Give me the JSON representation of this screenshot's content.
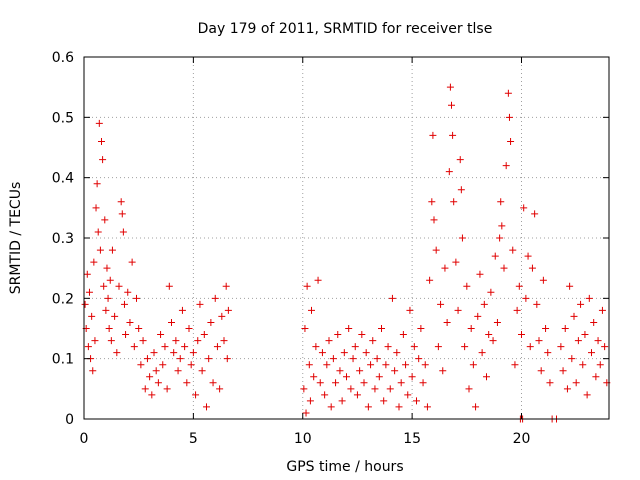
{
  "chart_data": {
    "type": "scatter",
    "title": "Day 179 of 2011, SRMTID for receiver tlse",
    "xlabel": "GPS time / hours",
    "ylabel": "SRMTID / TECUs",
    "xlim": [
      0,
      24
    ],
    "ylim": [
      0,
      0.6
    ],
    "x_ticks": [
      0,
      5,
      10,
      15,
      20
    ],
    "x_tick_labels": [
      "0",
      "5",
      "10",
      "15",
      "20"
    ],
    "y_ticks": [
      0,
      0.1,
      0.2,
      0.3,
      0.4,
      0.5,
      0.6
    ],
    "y_tick_labels": [
      "0",
      "0.1",
      "0.2",
      "0.3",
      "0.4",
      "0.5",
      "0.6"
    ],
    "grid": true,
    "marker": "plus",
    "color": "#e00000",
    "series": [
      {
        "name": "SRMTID",
        "points": [
          [
            0.05,
            0.19
          ],
          [
            0.1,
            0.15
          ],
          [
            0.15,
            0.24
          ],
          [
            0.2,
            0.12
          ],
          [
            0.25,
            0.21
          ],
          [
            0.3,
            0.1
          ],
          [
            0.35,
            0.17
          ],
          [
            0.4,
            0.08
          ],
          [
            0.45,
            0.26
          ],
          [
            0.5,
            0.13
          ],
          [
            0.55,
            0.35
          ],
          [
            0.6,
            0.39
          ],
          [
            0.65,
            0.31
          ],
          [
            0.7,
            0.49
          ],
          [
            0.75,
            0.28
          ],
          [
            0.8,
            0.46
          ],
          [
            0.85,
            0.43
          ],
          [
            0.9,
            0.22
          ],
          [
            0.95,
            0.33
          ],
          [
            1.0,
            0.18
          ],
          [
            1.05,
            0.25
          ],
          [
            1.1,
            0.2
          ],
          [
            1.15,
            0.15
          ],
          [
            1.2,
            0.23
          ],
          [
            1.25,
            0.13
          ],
          [
            1.3,
            0.28
          ],
          [
            1.4,
            0.17
          ],
          [
            1.5,
            0.11
          ],
          [
            1.6,
            0.22
          ],
          [
            1.7,
            0.36
          ],
          [
            1.75,
            0.34
          ],
          [
            1.8,
            0.31
          ],
          [
            1.85,
            0.19
          ],
          [
            1.9,
            0.14
          ],
          [
            2.0,
            0.21
          ],
          [
            2.1,
            0.16
          ],
          [
            2.2,
            0.26
          ],
          [
            2.3,
            0.12
          ],
          [
            2.4,
            0.2
          ],
          [
            2.5,
            0.15
          ],
          [
            2.6,
            0.09
          ],
          [
            2.7,
            0.13
          ],
          [
            2.8,
            0.05
          ],
          [
            2.9,
            0.1
          ],
          [
            3.0,
            0.07
          ],
          [
            3.1,
            0.04
          ],
          [
            3.2,
            0.11
          ],
          [
            3.3,
            0.08
          ],
          [
            3.4,
            0.06
          ],
          [
            3.5,
            0.14
          ],
          [
            3.6,
            0.09
          ],
          [
            3.7,
            0.12
          ],
          [
            3.8,
            0.05
          ],
          [
            3.9,
            0.22
          ],
          [
            4.0,
            0.16
          ],
          [
            4.1,
            0.11
          ],
          [
            4.2,
            0.13
          ],
          [
            4.3,
            0.08
          ],
          [
            4.4,
            0.1
          ],
          [
            4.5,
            0.18
          ],
          [
            4.6,
            0.12
          ],
          [
            4.7,
            0.06
          ],
          [
            4.8,
            0.15
          ],
          [
            4.9,
            0.09
          ],
          [
            5.0,
            0.11
          ],
          [
            5.1,
            0.04
          ],
          [
            5.2,
            0.13
          ],
          [
            5.3,
            0.19
          ],
          [
            5.4,
            0.08
          ],
          [
            5.5,
            0.14
          ],
          [
            5.6,
            0.02
          ],
          [
            5.7,
            0.1
          ],
          [
            5.8,
            0.16
          ],
          [
            5.9,
            0.06
          ],
          [
            6.0,
            0.2
          ],
          [
            6.1,
            0.12
          ],
          [
            6.2,
            0.05
          ],
          [
            6.3,
            0.17
          ],
          [
            6.4,
            0.13
          ],
          [
            6.5,
            0.22
          ],
          [
            6.55,
            0.1
          ],
          [
            6.6,
            0.18
          ],
          [
            10.05,
            0.05
          ],
          [
            10.1,
            0.15
          ],
          [
            10.15,
            0.01
          ],
          [
            10.2,
            0.22
          ],
          [
            10.3,
            0.09
          ],
          [
            10.35,
            0.03
          ],
          [
            10.4,
            0.18
          ],
          [
            10.5,
            0.07
          ],
          [
            10.6,
            0.12
          ],
          [
            10.7,
            0.23
          ],
          [
            10.8,
            0.06
          ],
          [
            10.9,
            0.11
          ],
          [
            11.0,
            0.04
          ],
          [
            11.1,
            0.09
          ],
          [
            11.2,
            0.13
          ],
          [
            11.3,
            0.02
          ],
          [
            11.4,
            0.1
          ],
          [
            11.5,
            0.06
          ],
          [
            11.6,
            0.14
          ],
          [
            11.7,
            0.08
          ],
          [
            11.8,
            0.03
          ],
          [
            11.9,
            0.11
          ],
          [
            12.0,
            0.07
          ],
          [
            12.1,
            0.15
          ],
          [
            12.2,
            0.05
          ],
          [
            12.3,
            0.1
          ],
          [
            12.4,
            0.12
          ],
          [
            12.5,
            0.04
          ],
          [
            12.6,
            0.08
          ],
          [
            12.7,
            0.14
          ],
          [
            12.8,
            0.06
          ],
          [
            12.9,
            0.11
          ],
          [
            13.0,
            0.02
          ],
          [
            13.1,
            0.09
          ],
          [
            13.2,
            0.13
          ],
          [
            13.3,
            0.05
          ],
          [
            13.4,
            0.1
          ],
          [
            13.5,
            0.07
          ],
          [
            13.6,
            0.15
          ],
          [
            13.7,
            0.03
          ],
          [
            13.8,
            0.09
          ],
          [
            13.9,
            0.12
          ],
          [
            14.0,
            0.05
          ],
          [
            14.1,
            0.2
          ],
          [
            14.2,
            0.08
          ],
          [
            14.3,
            0.11
          ],
          [
            14.4,
            0.02
          ],
          [
            14.5,
            0.06
          ],
          [
            14.6,
            0.14
          ],
          [
            14.7,
            0.09
          ],
          [
            14.8,
            0.04
          ],
          [
            14.9,
            0.18
          ],
          [
            15.0,
            0.07
          ],
          [
            15.1,
            0.12
          ],
          [
            15.2,
            0.03
          ],
          [
            15.3,
            0.1
          ],
          [
            15.4,
            0.15
          ],
          [
            15.5,
            0.06
          ],
          [
            15.6,
            0.09
          ],
          [
            15.7,
            0.02
          ],
          [
            15.8,
            0.23
          ],
          [
            15.9,
            0.36
          ],
          [
            15.95,
            0.47
          ],
          [
            16.0,
            0.33
          ],
          [
            16.1,
            0.28
          ],
          [
            16.2,
            0.12
          ],
          [
            16.3,
            0.19
          ],
          [
            16.4,
            0.08
          ],
          [
            16.5,
            0.25
          ],
          [
            16.6,
            0.16
          ],
          [
            16.7,
            0.41
          ],
          [
            16.75,
            0.55
          ],
          [
            16.8,
            0.52
          ],
          [
            16.85,
            0.47
          ],
          [
            16.9,
            0.36
          ],
          [
            17.0,
            0.26
          ],
          [
            17.1,
            0.18
          ],
          [
            17.2,
            0.43
          ],
          [
            17.25,
            0.38
          ],
          [
            17.3,
            0.3
          ],
          [
            17.4,
            0.12
          ],
          [
            17.5,
            0.22
          ],
          [
            17.6,
            0.05
          ],
          [
            17.7,
            0.15
          ],
          [
            17.8,
            0.09
          ],
          [
            17.9,
            0.02
          ],
          [
            18.0,
            0.17
          ],
          [
            18.1,
            0.24
          ],
          [
            18.2,
            0.11
          ],
          [
            18.3,
            0.19
          ],
          [
            18.4,
            0.07
          ],
          [
            18.5,
            0.14
          ],
          [
            18.6,
            0.21
          ],
          [
            18.7,
            0.13
          ],
          [
            18.8,
            0.27
          ],
          [
            18.9,
            0.16
          ],
          [
            19.0,
            0.3
          ],
          [
            19.05,
            0.36
          ],
          [
            19.1,
            0.32
          ],
          [
            19.2,
            0.25
          ],
          [
            19.3,
            0.42
          ],
          [
            19.4,
            0.54
          ],
          [
            19.45,
            0.5
          ],
          [
            19.5,
            0.46
          ],
          [
            19.6,
            0.28
          ],
          [
            19.7,
            0.09
          ],
          [
            19.8,
            0.18
          ],
          [
            19.9,
            0.22
          ],
          [
            20.0,
            0.14
          ],
          [
            20.1,
            0.35
          ],
          [
            20.2,
            0.2
          ],
          [
            20.3,
            0.27
          ],
          [
            20.4,
            0.12
          ],
          [
            20.5,
            0.25
          ],
          [
            20.6,
            0.34
          ],
          [
            20.7,
            0.19
          ],
          [
            20.8,
            0.13
          ],
          [
            20.9,
            0.08
          ],
          [
            21.0,
            0.23
          ],
          [
            21.1,
            0.15
          ],
          [
            21.2,
            0.11
          ],
          [
            21.3,
            0.06
          ],
          [
            21.4,
            0.0
          ],
          [
            21.6,
            0.0
          ],
          [
            21.8,
            0.12
          ],
          [
            21.9,
            0.08
          ],
          [
            22.0,
            0.15
          ],
          [
            22.1,
            0.05
          ],
          [
            22.2,
            0.22
          ],
          [
            22.3,
            0.1
          ],
          [
            22.4,
            0.17
          ],
          [
            22.5,
            0.06
          ],
          [
            22.6,
            0.13
          ],
          [
            22.7,
            0.19
          ],
          [
            22.8,
            0.09
          ],
          [
            22.9,
            0.14
          ],
          [
            23.0,
            0.04
          ],
          [
            23.1,
            0.2
          ],
          [
            23.2,
            0.11
          ],
          [
            23.3,
            0.16
          ],
          [
            23.4,
            0.07
          ],
          [
            23.5,
            0.13
          ],
          [
            23.6,
            0.09
          ],
          [
            23.7,
            0.18
          ],
          [
            23.8,
            0.12
          ],
          [
            23.9,
            0.06
          ],
          [
            19.95,
            0.0
          ],
          [
            20.05,
            0.0
          ]
        ]
      }
    ]
  }
}
